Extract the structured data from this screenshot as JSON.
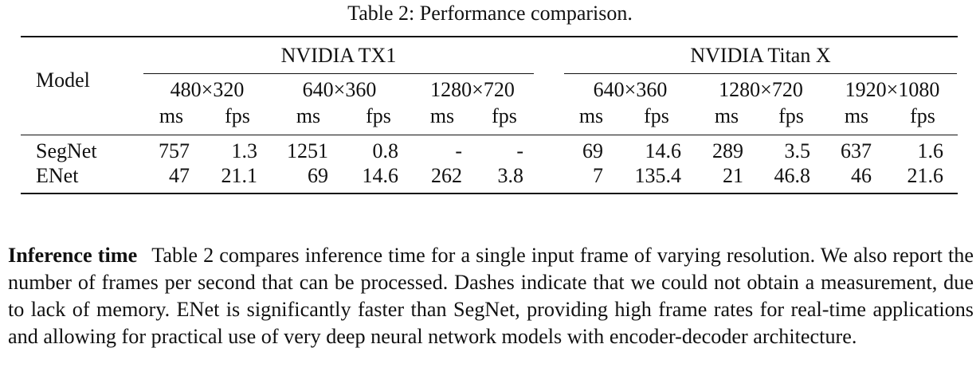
{
  "table": {
    "caption": "Table 2: Performance comparison.",
    "model_header": "Model",
    "groups": [
      "NVIDIA TX1",
      "NVIDIA Titan X"
    ],
    "resolutions": [
      "480×320",
      "640×360",
      "1280×720",
      "640×360",
      "1280×720",
      "1920×1080"
    ],
    "units": [
      "ms",
      "fps",
      "ms",
      "fps",
      "ms",
      "fps",
      "ms",
      "fps",
      "ms",
      "fps",
      "ms",
      "fps"
    ],
    "rows": [
      {
        "model": "SegNet",
        "values": [
          "757",
          "1.3",
          "1251",
          "0.8",
          "-",
          "-",
          "69",
          "14.6",
          "289",
          "3.5",
          "637",
          "1.6"
        ]
      },
      {
        "model": "ENet",
        "values": [
          "47",
          "21.1",
          "69",
          "14.6",
          "262",
          "3.8",
          "7",
          "135.4",
          "21",
          "46.8",
          "46",
          "21.6"
        ]
      }
    ]
  },
  "paragraph": {
    "heading": "Inference time",
    "text": "Table 2 compares inference time for a single input frame of varying resolution. We also report the number of frames per second that can be processed. Dashes indicate that we could not obtain a measurement, due to lack of memory. ENet is significantly faster than SegNet, providing high frame rates for real-time applications and allowing for practical use of very deep neural network models with encoder-decoder architecture."
  }
}
